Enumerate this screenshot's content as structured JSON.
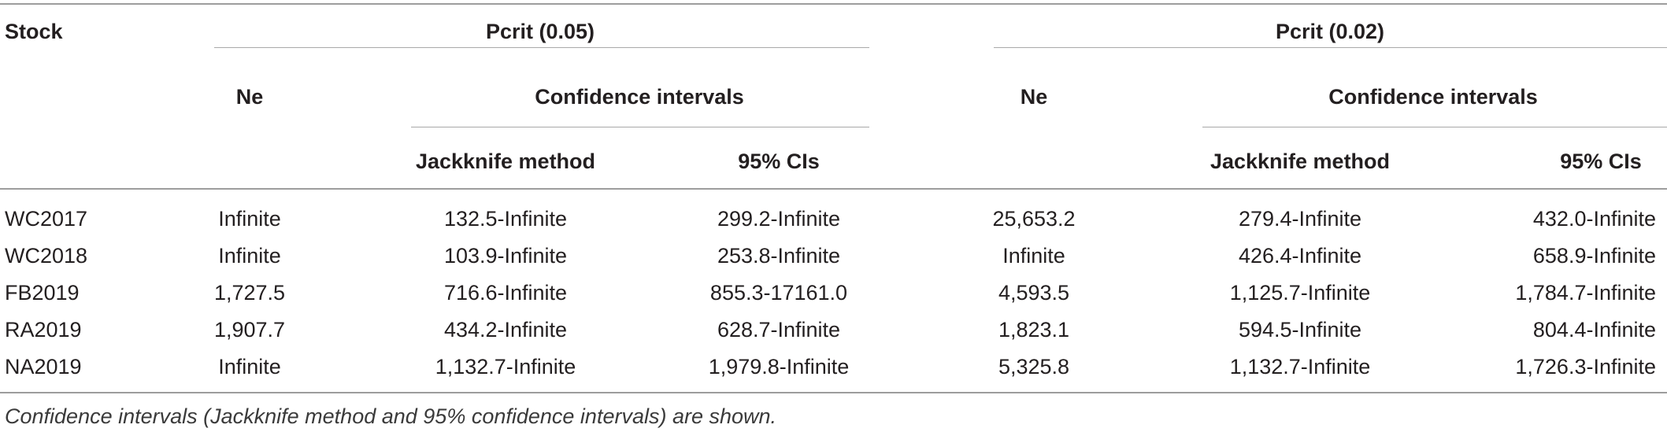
{
  "table": {
    "header": {
      "stock": "Stock",
      "group1": "Pcrit (0.05)",
      "group2": "Pcrit (0.02)",
      "ne": "Ne",
      "ci": "Confidence intervals",
      "jackknife": "Jackknife method",
      "ci95": "95% CIs"
    },
    "rows": [
      [
        "WC2017",
        "Infinite",
        "132.5-Infinite",
        "299.2-Infinite",
        "25,653.2",
        "279.4-Infinite",
        "432.0-Infinite"
      ],
      [
        "WC2018",
        "Infinite",
        "103.9-Infinite",
        "253.8-Infinite",
        "Infinite",
        "426.4-Infinite",
        "658.9-Infinite"
      ],
      [
        "FB2019",
        "1,727.5",
        "716.6-Infinite",
        "855.3-17161.0",
        "4,593.5",
        "1,125.7-Infinite",
        "1,784.7-Infinite"
      ],
      [
        "RA2019",
        "1,907.7",
        "434.2-Infinite",
        "628.7-Infinite",
        "1,823.1",
        "594.5-Infinite",
        "804.4-Infinite"
      ],
      [
        "NA2019",
        "Infinite",
        "1,132.7-Infinite",
        "1,979.8-Infinite",
        "5,325.8",
        "1,132.7-Infinite",
        "1,726.3-Infinite"
      ]
    ],
    "caption": "Confidence intervals (Jackknife method and 95% confidence intervals) are shown."
  }
}
